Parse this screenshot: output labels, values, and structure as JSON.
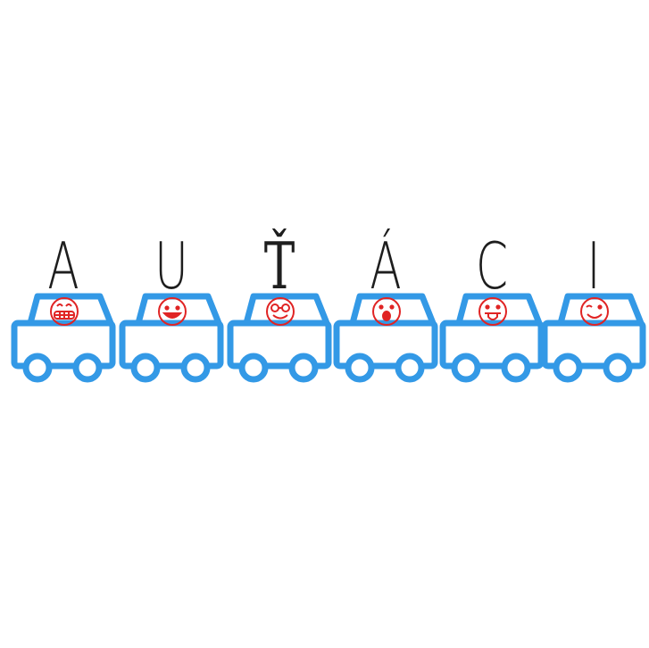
{
  "logo": {
    "letters": [
      "A",
      "U",
      "Ť",
      "Á",
      "C",
      "I"
    ],
    "colors": {
      "car": "#3399e6",
      "face": "#e02424",
      "letter": "#1e1e1e"
    },
    "faces": [
      "grinning-teeth-face-icon",
      "smiling-face-icon",
      "nerd-face-icon",
      "shocked-face-icon",
      "tongue-out-face-icon",
      "winking-face-icon"
    ]
  }
}
